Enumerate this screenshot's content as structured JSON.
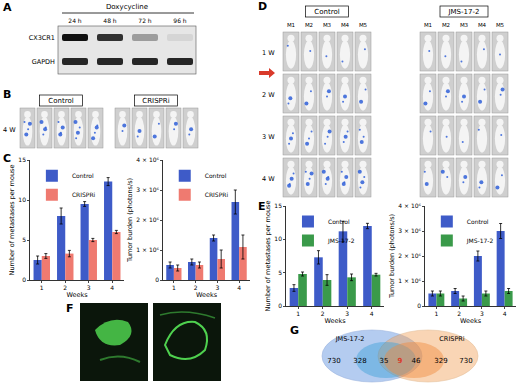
{
  "panel_labels": [
    "A",
    "B",
    "C",
    "D",
    "E",
    "F",
    "G"
  ],
  "panel_a": {
    "treatment": "Doxycycline",
    "timepoints": [
      "24 h",
      "48 h",
      "72 h",
      "96 h"
    ],
    "rows": [
      "CX3CR1",
      "GAPDH"
    ]
  },
  "panel_b": {
    "groups": [
      "Control",
      "CRISPRi"
    ],
    "timepoint": "4 W"
  },
  "panel_d": {
    "groups": [
      "Control",
      "JMS-17-2"
    ],
    "mice": [
      "M1",
      "M2",
      "M3",
      "M4",
      "M5"
    ],
    "timepoints": [
      "1 W",
      "2 W",
      "3 W",
      "4 W"
    ]
  },
  "panel_g": {
    "sets": [
      "JMS-17-2",
      "CRISPRi"
    ],
    "region_counts": [
      730,
      328,
      35,
      9,
      46,
      329,
      730
    ]
  },
  "chart_data": [
    {
      "type": "bar",
      "x_label": "Weeks",
      "y_label": "Number of metastases per mouse",
      "categories": [
        "1",
        "2",
        "3",
        "4"
      ],
      "series": [
        {
          "name": "Control",
          "color": "#3e5bc8",
          "values": [
            2.5,
            8,
            9.5,
            12.3
          ],
          "error": [
            0.5,
            1,
            0.3,
            0.5
          ]
        },
        {
          "name": "CRISPRi",
          "color": "#ef7a70",
          "values": [
            3,
            3.3,
            5,
            6
          ],
          "error": [
            0.3,
            0.4,
            0.2,
            0.2
          ]
        }
      ],
      "ylim": [
        0,
        15
      ],
      "yticks": [
        0,
        5,
        10,
        15
      ],
      "grid": false,
      "legend": "upper left"
    },
    {
      "type": "bar",
      "x_label": "Weeks",
      "y_label": "Tumor burden (photons/s)",
      "categories": [
        "1",
        "2",
        "3",
        "4"
      ],
      "series": [
        {
          "name": "Control",
          "color": "#3e5bc8",
          "values": [
            500000,
            600000,
            1400000,
            2600000
          ],
          "error": [
            100000,
            100000,
            100000,
            400000
          ]
        },
        {
          "name": "CRISPRi",
          "color": "#ef7a70",
          "values": [
            400000,
            500000,
            700000,
            1100000
          ],
          "error": [
            100000,
            100000,
            300000,
            400000
          ]
        }
      ],
      "ylim": [
        0,
        4000000
      ],
      "yticks": [
        0,
        {
          "value": 1000000,
          "label": "1 × 10⁶"
        },
        {
          "value": 2000000,
          "label": "2 × 10⁶"
        },
        {
          "value": 3000000,
          "label": "3 × 10⁶"
        },
        {
          "value": 4000000,
          "label": "4 × 10⁶"
        }
      ],
      "grid": false,
      "legend": "upper left"
    },
    {
      "type": "bar",
      "x_label": "Weeks",
      "y_label": "Number of metastases per mouse",
      "categories": [
        "1",
        "2",
        "3",
        "4"
      ],
      "series": [
        {
          "name": "Control",
          "color": "#3e5bc8",
          "values": [
            2.7,
            7.3,
            11.2,
            12
          ],
          "error": [
            0.5,
            1,
            1.5,
            0.4
          ]
        },
        {
          "name": "JMS-17-2",
          "color": "#3a9a4a",
          "values": [
            4.8,
            3.9,
            4.3,
            4.7
          ],
          "error": [
            0.3,
            0.8,
            0.5,
            0.2
          ]
        }
      ],
      "ylim": [
        0,
        15
      ],
      "yticks": [
        0,
        5,
        10,
        15
      ],
      "grid": false,
      "legend": "upper left"
    },
    {
      "type": "bar",
      "x_label": "Weeks",
      "y_label": "Tumor burden (photons/s)",
      "categories": [
        "1",
        "2",
        "3",
        "4"
      ],
      "series": [
        {
          "name": "Control",
          "color": "#3e5bc8",
          "values": [
            500000,
            600000,
            2000000,
            3000000
          ],
          "error": [
            100000,
            100000,
            200000,
            300000
          ]
        },
        {
          "name": "JMS-17-2",
          "color": "#3a9a4a",
          "values": [
            500000,
            300000,
            500000,
            600000
          ],
          "error": [
            100000,
            100000,
            100000,
            100000
          ]
        }
      ],
      "ylim": [
        0,
        4000000
      ],
      "yticks": [
        0,
        {
          "value": 1000000,
          "label": "1 × 10⁶"
        },
        {
          "value": 2000000,
          "label": "2 × 10⁶"
        },
        {
          "value": 3000000,
          "label": "3 × 10⁶"
        },
        {
          "value": 4000000,
          "label": "4 × 10⁶"
        }
      ],
      "grid": false,
      "legend": "upper left"
    }
  ]
}
